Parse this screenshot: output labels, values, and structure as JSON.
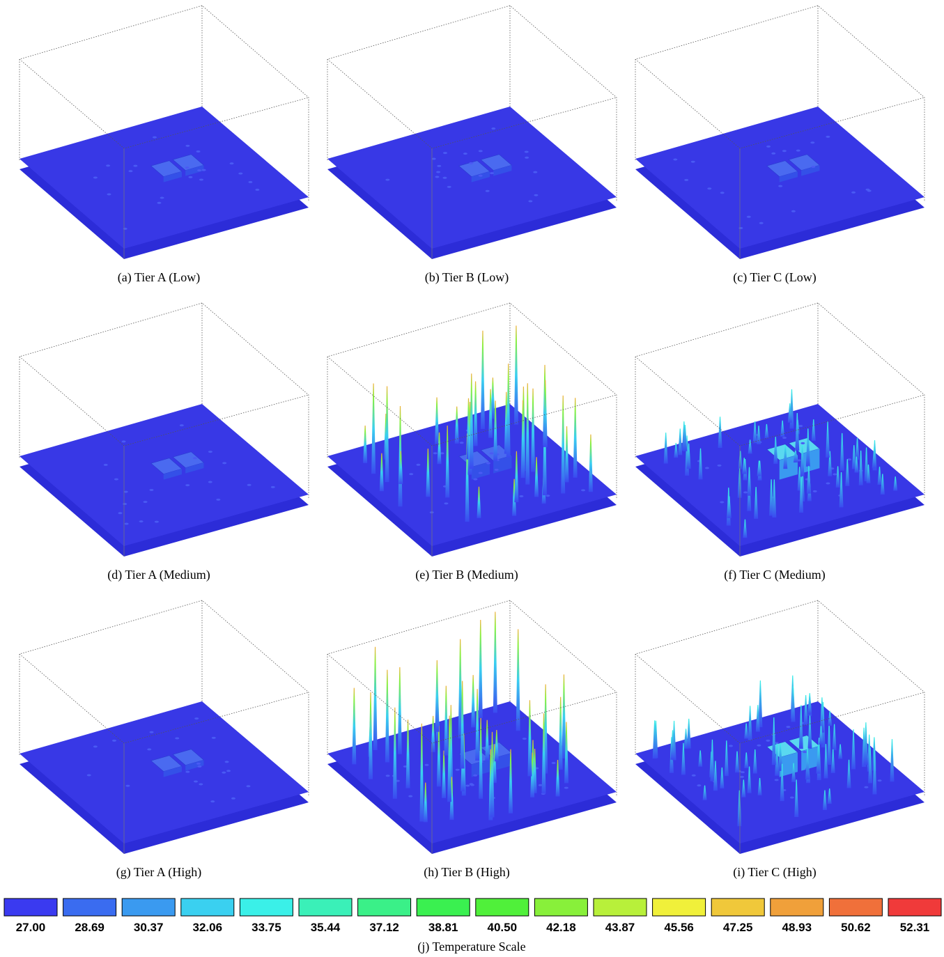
{
  "panels": [
    {
      "caption": "(a)  Tier A (Low)"
    },
    {
      "caption": "(b)  Tier B (Low)"
    },
    {
      "caption": "(c)  Tier C (Low)"
    },
    {
      "caption": "(d)  Tier A (Medium)"
    },
    {
      "caption": "(e)  Tier B (Medium)"
    },
    {
      "caption": "(f)  Tier C (Medium)"
    },
    {
      "caption": "(g)  Tier A (High)"
    },
    {
      "caption": "(h)  Tier B (High)"
    },
    {
      "caption": "(i)  Tier C (High)"
    }
  ],
  "scale": {
    "colors": [
      "#3a3af0",
      "#3a6cf0",
      "#3a9af0",
      "#3ad0f0",
      "#3af0e8",
      "#3af0b8",
      "#3af088",
      "#3af050",
      "#50f03a",
      "#88f03a",
      "#b8f03a",
      "#f0f03a",
      "#f0c83a",
      "#f0a03a",
      "#f0703a",
      "#f03a3a"
    ],
    "labels": [
      "27.00",
      "28.69",
      "30.37",
      "32.06",
      "33.75",
      "35.44",
      "37.12",
      "38.81",
      "40.50",
      "42.18",
      "43.87",
      "45.56",
      "47.25",
      "48.93",
      "50.62",
      "52.31"
    ],
    "caption": "(j)  Temperature Scale"
  }
}
